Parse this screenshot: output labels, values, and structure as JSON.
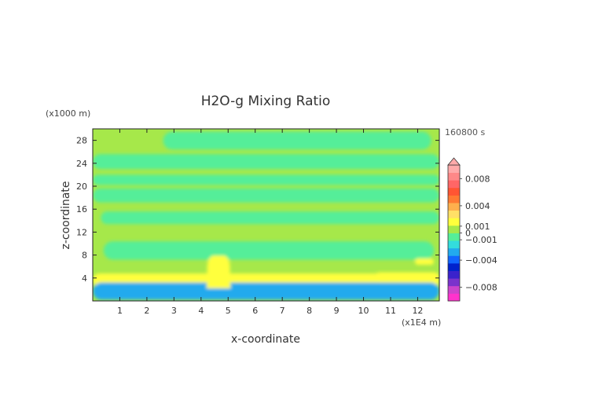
{
  "chart_data": {
    "type": "heatmap",
    "title": "H2O-g Mixing Ratio",
    "xlabel": "x-coordinate",
    "ylabel": "z-coordinate",
    "x_unit": "(x1E4 m)",
    "y_unit": "(x1000 m)",
    "time_label": "160800 s",
    "xlim": [
      0,
      12.8
    ],
    "ylim": [
      0,
      30
    ],
    "x_ticks": [
      1,
      2,
      3,
      4,
      5,
      6,
      7,
      8,
      9,
      10,
      11,
      12
    ],
    "y_ticks": [
      4,
      8,
      12,
      16,
      20,
      24,
      28
    ],
    "colorbar": {
      "range": [
        -0.01,
        0.01
      ],
      "tick_values": [
        0.008,
        0.004,
        0.001,
        0,
        -0.001,
        -0.004,
        -0.008
      ],
      "tick_labels": [
        "0.008",
        "0.004",
        "0.001",
        "0",
        "−0.001",
        "−0.004",
        "−0.008"
      ],
      "colors": [
        "#ff33cc",
        "#cc44cc",
        "#7a33cc",
        "#3a22cc",
        "#0022cc",
        "#1166ff",
        "#22aaee",
        "#33dddd",
        "#55ee99",
        "#a6e84a",
        "#ffff3c",
        "#ffe066",
        "#ffb04d",
        "#ff7a33",
        "#ff5533",
        "#ff6666",
        "#ff8888",
        "#ffaaaa"
      ]
    },
    "features": [
      {
        "kind": "band",
        "label": "upper-green",
        "x0": 2.6,
        "x1": 12.5,
        "z0": 26.4,
        "z1": 29.5,
        "value": -0.0003
      },
      {
        "kind": "band",
        "label": "green-24",
        "x0": 0,
        "x1": 12.8,
        "z0": 23,
        "z1": 25.6,
        "value": -0.0003
      },
      {
        "kind": "band",
        "label": "green-21",
        "x0": 0,
        "x1": 12.8,
        "z0": 20.2,
        "z1": 22,
        "value": -0.0003
      },
      {
        "kind": "band",
        "label": "green-18",
        "x0": 0,
        "x1": 12.8,
        "z0": 17.2,
        "z1": 19.6,
        "value": -0.0003
      },
      {
        "kind": "band",
        "label": "green-14",
        "x0": 0.3,
        "x1": 12.8,
        "z0": 13.4,
        "z1": 15.6,
        "value": -0.0003
      },
      {
        "kind": "band",
        "label": "green-9",
        "x0": 0.4,
        "x1": 12.6,
        "z0": 7.2,
        "z1": 10.4,
        "value": -0.0004
      },
      {
        "kind": "band",
        "label": "moist-low",
        "x0": 0,
        "x1": 12.8,
        "z0": 2.5,
        "z1": 4.8,
        "value": 0.0012
      },
      {
        "kind": "band",
        "label": "dry-low",
        "x0": 0,
        "x1": 12.8,
        "z0": 0.2,
        "z1": 3.2,
        "value": -0.0025
      },
      {
        "kind": "plume",
        "label": "plume-top",
        "x0": 4.2,
        "x1": 5.1,
        "z0": 2.2,
        "z1": 7.9,
        "value": 0.002
      },
      {
        "kind": "band",
        "label": "patch-right",
        "x0": 10.4,
        "x1": 12.8,
        "z0": 3.2,
        "z1": 5.0,
        "value": 0.0015
      },
      {
        "kind": "band",
        "label": "patch-right-8",
        "x0": 11.9,
        "x1": 12.6,
        "z0": 6.3,
        "z1": 7.4,
        "value": 0.0012
      }
    ]
  }
}
